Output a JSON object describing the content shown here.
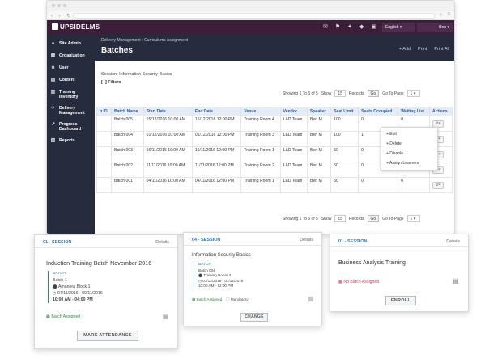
{
  "app": {
    "logo": "UPSIDELMS",
    "language": "English",
    "user": "Ben",
    "top_icons": [
      "chat-icon",
      "share-icon",
      "settings-icon",
      "help-icon",
      "document-icon"
    ]
  },
  "sidebar": {
    "items": [
      {
        "label": "Site Admin",
        "icon": "person"
      },
      {
        "label": "Organization",
        "icon": "org"
      },
      {
        "label": "User",
        "icon": "user"
      },
      {
        "label": "Content",
        "icon": "content"
      },
      {
        "label": "Training Inventory",
        "icon": "book"
      },
      {
        "label": "Delivery Management",
        "icon": "delivery"
      },
      {
        "label": "Progress Dashboard",
        "icon": "chart"
      },
      {
        "label": "Reports",
        "icon": "reports"
      }
    ]
  },
  "page": {
    "breadcrumb": "Delivery Management › Curriculums Assignment",
    "title": "Batches",
    "actions": [
      "+ Add",
      "Print",
      "Print All"
    ],
    "session": "Session: Information Security Basics",
    "filters": "[+] Filters"
  },
  "pager": {
    "showing": "Showing 1 To 5 of 5",
    "show_label": "Show",
    "show_value": "15",
    "records_label": "Records",
    "go_label": "Go",
    "page_label": "Go To Page",
    "page_value": "1"
  },
  "table": {
    "headers": [
      "h ID",
      "Batch Name",
      "Start Date",
      "End Date",
      "Venue",
      "Vendor",
      "Speaker",
      "Seat Limit",
      "Seats Occupied",
      "Waiting List",
      "Actions"
    ],
    "rows": [
      [
        "",
        "Batch 005",
        "15/12/2016 10:00 AM",
        "15/12/2016 12:00 PM",
        "Training Room 4",
        "L&D Team",
        "Ben M",
        "100",
        "0",
        "0"
      ],
      [
        "",
        "Batch 004",
        "01/12/2016 10:00 AM",
        "01/12/2016 12:00 PM",
        "Training Room 3",
        "L&D Team",
        "Ben M",
        "100",
        "1",
        ""
      ],
      [
        "",
        "Batch 003",
        "16/11/2016 10:00 AM",
        "16/11/2016 12:00 PM",
        "Training Room 1",
        "L&D Team",
        "Ben M",
        "50",
        "0",
        ""
      ],
      [
        "",
        "Batch 002",
        "11/11/2016 10:00 AM",
        "11/11/2016 12:00 PM",
        "Training Room 2",
        "L&D Team",
        "Ben M",
        "50",
        "0",
        "0"
      ],
      [
        "",
        "Batch 001",
        "04/11/2016 10:00 AM",
        "04/11/2016 12:00 PM",
        "Training Room 1",
        "L&D Team",
        "Ben M",
        "50",
        "0",
        "0"
      ]
    ]
  },
  "dropdown": {
    "items": [
      "+ Edit",
      "+ Delete",
      "+ Disable",
      "+ Assign Learners"
    ]
  },
  "cards": [
    {
      "label": "01 - SESSION",
      "details": "Details",
      "title": "Induction Training Batch November 2016",
      "batch_tag": "BATCH",
      "batch": "Batch 1",
      "location": "Amanora Block 1",
      "dates": "07/11/2016 - 09/11/2016",
      "time": "10:00 AM - 04:00 PM",
      "status": "Batch Assigned",
      "button": "MARK ATTENDANCE"
    },
    {
      "label": "04 - SESSION",
      "details": "Details",
      "title": "Information Security Basics",
      "batch_tag": "BATCH",
      "batch": "Batch 004",
      "location": "Training Room 3",
      "dates": "01/12/2016 - 01/12/2016",
      "time": "10:00 AM - 12:00 PM",
      "status": "Batch Assigned",
      "extra": "Mandatory",
      "button": "CHANGE"
    },
    {
      "label": "01 - SESSION",
      "details": "Details",
      "title": "Business Analysis Training",
      "status": "No Batch Assigned",
      "button": "ENROLL"
    }
  ],
  "colors": {
    "topbar": "#3b1e3a",
    "sidebar": "#262c3d",
    "accent": "#2b7bbf",
    "assigned": "#2e8b3e",
    "unassigned": "#d23b3b"
  }
}
